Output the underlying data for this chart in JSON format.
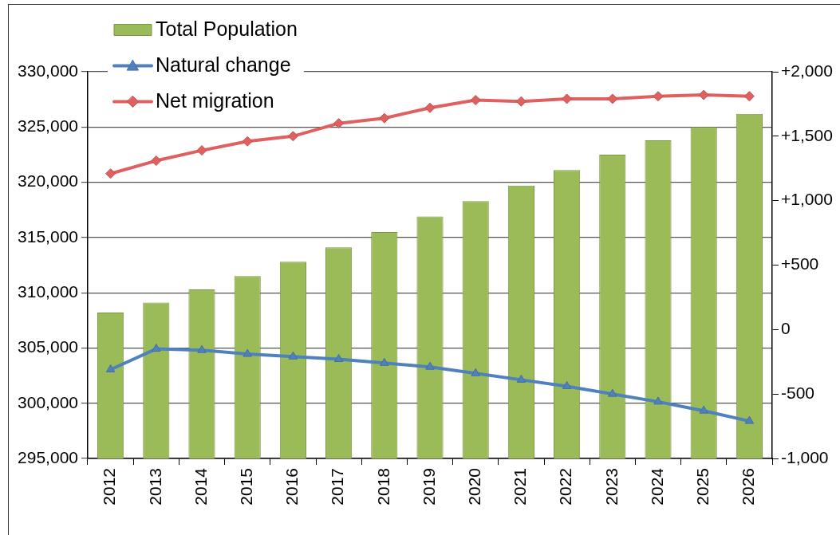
{
  "chart_data": {
    "type": "bar",
    "categories": [
      "2012",
      "2013",
      "2014",
      "2015",
      "2016",
      "2017",
      "2018",
      "2019",
      "2020",
      "2021",
      "2022",
      "2023",
      "2024",
      "2025",
      "2026"
    ],
    "series": [
      {
        "name": "Total Population",
        "color": "#9bbb59",
        "values": [
          308200,
          309100,
          310300,
          311500,
          312800,
          314100,
          315500,
          316900,
          318300,
          319700,
          321100,
          322500,
          323800,
          325000,
          326200
        ]
      },
      {
        "name": "Natural change",
        "type": "line",
        "axis": "y2",
        "color": "#4f81bd",
        "marker": "triangle",
        "values": [
          -310,
          -150,
          -160,
          -190,
          -210,
          -230,
          -260,
          -290,
          -340,
          -390,
          -440,
          -500,
          -560,
          -630,
          -710
        ]
      },
      {
        "name": "Net migration",
        "type": "line",
        "axis": "y2",
        "color": "#e0605f",
        "marker": "diamond",
        "values": [
          1210,
          1310,
          1390,
          1460,
          1500,
          1600,
          1640,
          1720,
          1780,
          1770,
          1790,
          1790,
          1810,
          1820,
          1810
        ]
      }
    ],
    "ylim": [
      295000,
      330000
    ],
    "yticks": [
      {
        "value": 295000,
        "label": "295,000"
      },
      {
        "value": 300000,
        "label": "300,000"
      },
      {
        "value": 305000,
        "label": "305,000"
      },
      {
        "value": 310000,
        "label": "310,000"
      },
      {
        "value": 315000,
        "label": "315,000"
      },
      {
        "value": 320000,
        "label": "320,000"
      },
      {
        "value": 325000,
        "label": "325,000"
      },
      {
        "value": 330000,
        "label": "330,000"
      }
    ],
    "y2lim": [
      -1000,
      2000
    ],
    "y2ticks": [
      {
        "value": -1000,
        "label": "-1,000"
      },
      -500,
      0,
      {
        "value": 500,
        "label": "+500"
      },
      {
        "value": 1000,
        "label": "+1,000"
      },
      {
        "value": 1500,
        "label": "+1,500"
      },
      {
        "value": 2000,
        "label": "+2,000"
      }
    ],
    "grid": "y",
    "legend": "top left"
  }
}
